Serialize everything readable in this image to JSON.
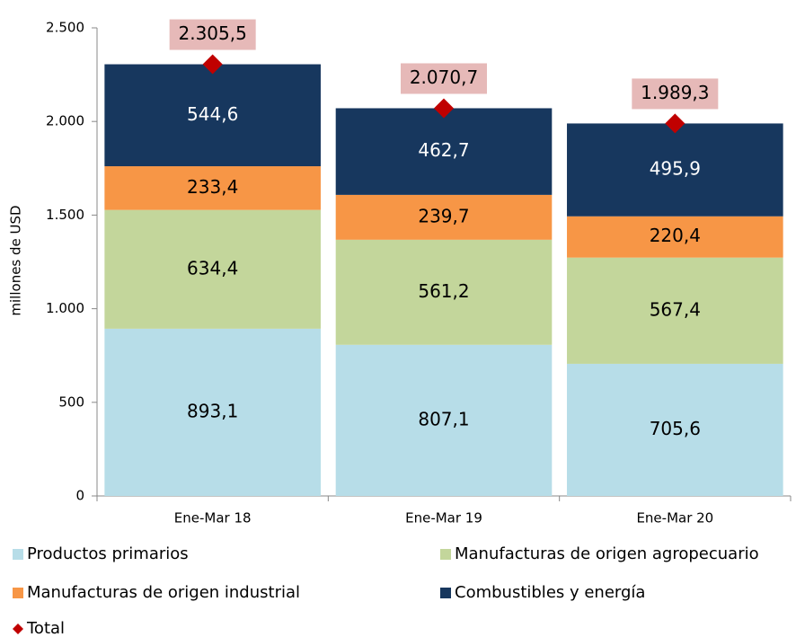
{
  "chart_data": {
    "type": "stacked_bar",
    "ylabel": "millones de  USD",
    "categories": [
      "Ene-Mar 18",
      "Ene-Mar 19",
      "Ene-Mar 20"
    ],
    "ylim": [
      0,
      2500
    ],
    "yticks": [
      0,
      500,
      {
        "value": 1000,
        "label": "1.000"
      },
      {
        "value": 1500,
        "label": "1.500"
      },
      {
        "value": 2000,
        "label": "2.000"
      },
      {
        "value": 2500,
        "label": "2.500"
      }
    ],
    "series": [
      {
        "name": "Productos primarios",
        "color": "#b7dde8",
        "label_color": "#000000",
        "values": [
          893.1,
          807.1,
          705.6
        ],
        "value_labels": [
          "893,1",
          "807,1",
          "705,6"
        ]
      },
      {
        "name": "Manufacturas de origen agropecuario",
        "color": "#c3d69b",
        "label_color": "#000000",
        "values": [
          634.4,
          561.2,
          567.4
        ],
        "value_labels": [
          "634,4",
          "561,2",
          "567,4"
        ]
      },
      {
        "name": "Manufacturas de origen industrial",
        "color": "#f79646",
        "label_color": "#000000",
        "values": [
          233.4,
          239.7,
          220.4
        ],
        "value_labels": [
          "233,4",
          "239,7",
          "220,4"
        ]
      },
      {
        "name": "Combustibles y energía",
        "color": "#17375e",
        "label_color": "#ffffff",
        "values": [
          544.6,
          462.7,
          495.9
        ],
        "value_labels": [
          "544,6",
          "462,7",
          "495,9"
        ]
      }
    ],
    "total": {
      "name": "Total",
      "color": "#c00000",
      "label_background": "#e6b9b8",
      "values": [
        2305.5,
        2070.7,
        1989.3
      ],
      "value_labels": [
        "2.305,5",
        "2.070,7",
        "1.989,3"
      ]
    }
  }
}
